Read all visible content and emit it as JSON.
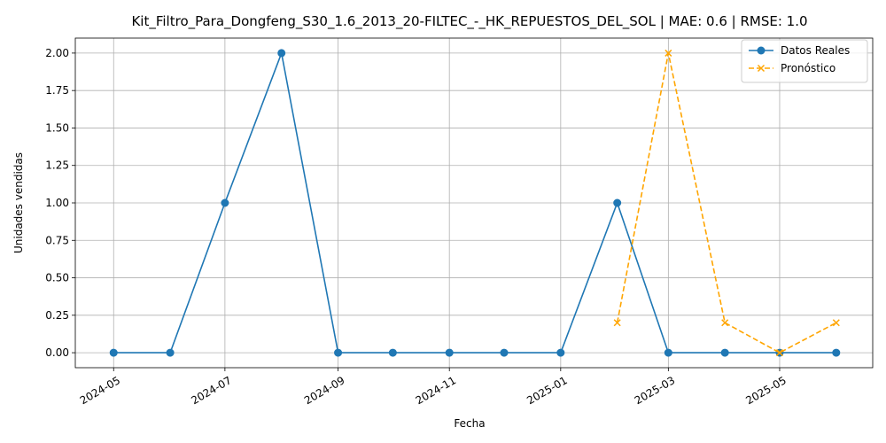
{
  "chart_data": {
    "type": "line",
    "title": "Kit_Filtro_Para_Dongfeng_S30_1.6_2013_20-FILTEC_-_HK_REPUESTOS_DEL_SOL | MAE: 0.6 | RMSE: 1.0",
    "xlabel": "Fecha",
    "ylabel": "Unidades vendidas",
    "ylim": [
      -0.1,
      2.1
    ],
    "xlim": [
      "2024-04-10",
      "2025-06-21"
    ],
    "grid": true,
    "legend_position": "top-right",
    "y_ticks": [
      0.0,
      0.25,
      0.5,
      0.75,
      1.0,
      1.25,
      1.5,
      1.75,
      2.0
    ],
    "y_tick_labels": [
      "0.00",
      "0.25",
      "0.50",
      "0.75",
      "1.00",
      "1.25",
      "1.50",
      "1.75",
      "2.00"
    ],
    "x_ticks": [
      "2024-05-01",
      "2024-07-01",
      "2024-09-01",
      "2024-11-01",
      "2025-01-01",
      "2025-03-01",
      "2025-05-01"
    ],
    "x_tick_labels": [
      "2024-05",
      "2024-07",
      "2024-09",
      "2024-11",
      "2025-01",
      "2025-03",
      "2025-05"
    ],
    "series": [
      {
        "name": "Datos Reales",
        "color": "#1f77b4",
        "line_style": "solid",
        "marker": "circle",
        "x": [
          "2024-05-01",
          "2024-06-01",
          "2024-07-01",
          "2024-08-01",
          "2024-09-01",
          "2024-10-01",
          "2024-11-01",
          "2024-12-01",
          "2025-01-01",
          "2025-02-01",
          "2025-03-01",
          "2025-04-01",
          "2025-05-01",
          "2025-06-01"
        ],
        "values": [
          0,
          0,
          1,
          2,
          0,
          0,
          0,
          0,
          0,
          1,
          0,
          0,
          0,
          0
        ]
      },
      {
        "name": "Pronóstico",
        "color": "#ffa500",
        "line_style": "dashed",
        "marker": "x",
        "x": [
          "2025-02-01",
          "2025-03-01",
          "2025-04-01",
          "2025-05-01",
          "2025-06-01"
        ],
        "values": [
          0.2,
          2.0,
          0.2,
          0.0,
          0.2
        ]
      }
    ]
  }
}
